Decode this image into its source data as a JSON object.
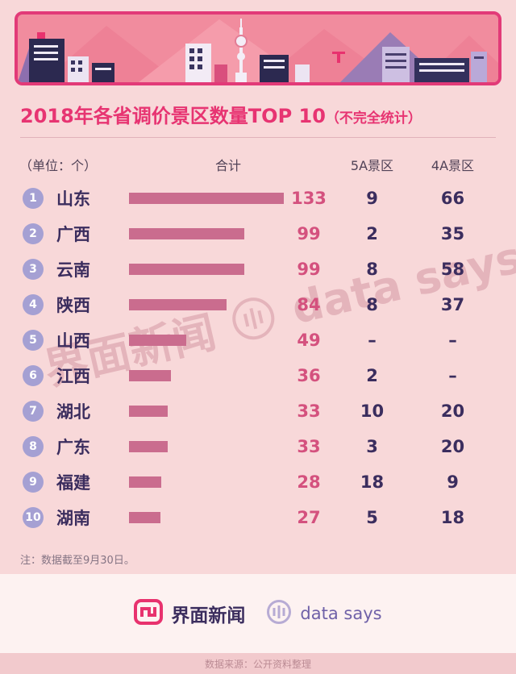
{
  "title": {
    "main": "2018年各省调价景区数量TOP 10",
    "suffix": "（不完全统计）"
  },
  "table": {
    "unit_label": "（单位：个）",
    "columns": [
      "合计",
      "5A景区",
      "4A景区"
    ],
    "rows": [
      {
        "rank": "1",
        "province": "山东",
        "total": "133",
        "a5": "9",
        "a4": "66"
      },
      {
        "rank": "2",
        "province": "广西",
        "total": "99",
        "a5": "2",
        "a4": "35"
      },
      {
        "rank": "3",
        "province": "云南",
        "total": "99",
        "a5": "8",
        "a4": "58"
      },
      {
        "rank": "4",
        "province": "陕西",
        "total": "84",
        "a5": "8",
        "a4": "37"
      },
      {
        "rank": "5",
        "province": "山西",
        "total": "49",
        "a5": "–",
        "a4": "–"
      },
      {
        "rank": "6",
        "province": "江西",
        "total": "36",
        "a5": "2",
        "a4": "–"
      },
      {
        "rank": "7",
        "province": "湖北",
        "total": "33",
        "a5": "10",
        "a4": "20"
      },
      {
        "rank": "8",
        "province": "广东",
        "total": "33",
        "a5": "3",
        "a4": "20"
      },
      {
        "rank": "9",
        "province": "福建",
        "total": "28",
        "a5": "18",
        "a4": "9"
      },
      {
        "rank": "10",
        "province": "湖南",
        "total": "27",
        "a5": "5",
        "a4": "18"
      }
    ]
  },
  "note": "注：数据截至9月30日。",
  "watermark": {
    "brand1": "界面新闻",
    "brand2": "data says"
  },
  "footer": {
    "brand1": "界面新闻",
    "brand2": "data says",
    "source": "数据来源：公开资料整理"
  },
  "colors": {
    "accent": "#e73472",
    "bar": "#ca6c8e",
    "rank_badge": "#a5a0d3",
    "dark_text": "#3b2d5e",
    "total_text": "#d4517e",
    "background": "#f8d8d9"
  },
  "chart_data": {
    "type": "bar",
    "orientation": "horizontal",
    "title": "2018年各省调价景区数量TOP 10（不完全统计）",
    "unit": "个",
    "categories": [
      "山东",
      "广西",
      "云南",
      "陕西",
      "山西",
      "江西",
      "湖北",
      "广东",
      "福建",
      "湖南"
    ],
    "series": [
      {
        "name": "合计",
        "values": [
          133,
          99,
          99,
          84,
          49,
          36,
          33,
          33,
          28,
          27
        ]
      },
      {
        "name": "5A景区",
        "values": [
          9,
          2,
          8,
          8,
          null,
          2,
          10,
          3,
          18,
          5
        ]
      },
      {
        "name": "4A景区",
        "values": [
          66,
          35,
          58,
          37,
          null,
          null,
          20,
          20,
          9,
          18
        ]
      }
    ],
    "xlim": [
      0,
      133
    ],
    "note": "注：数据截至9月30日。",
    "source": "数据来源：公开资料整理"
  }
}
